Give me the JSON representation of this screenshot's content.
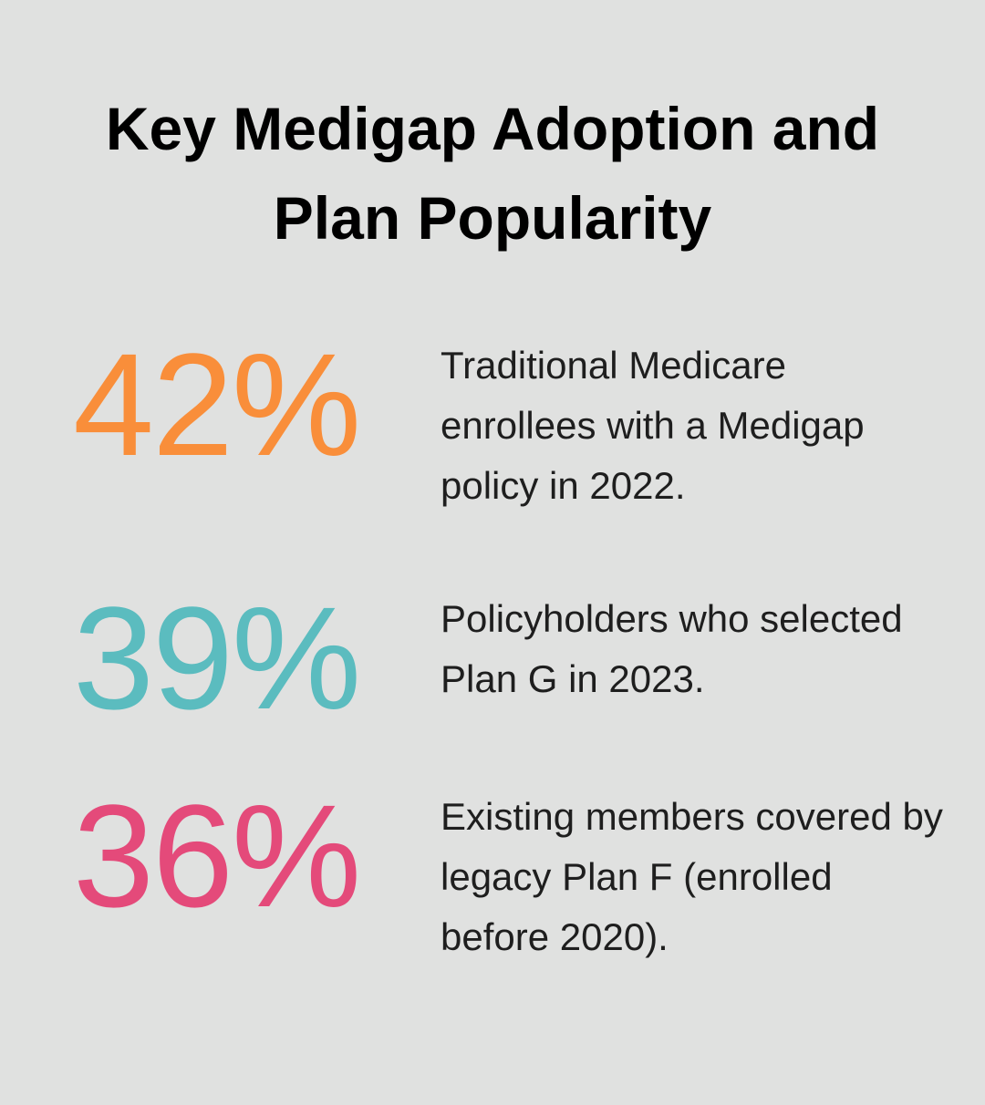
{
  "header": {
    "title": "Key Medigap Adoption and Plan Popularity"
  },
  "stats": [
    {
      "value": "42%",
      "description": "Traditional Medicare enrollees with a Medigap policy in 2022."
    },
    {
      "value": "39%",
      "description": "Policyholders who selected Plan G in 2023."
    },
    {
      "value": "36%",
      "description": "Existing members covered by legacy Plan F (enrolled before 2020)."
    }
  ]
}
